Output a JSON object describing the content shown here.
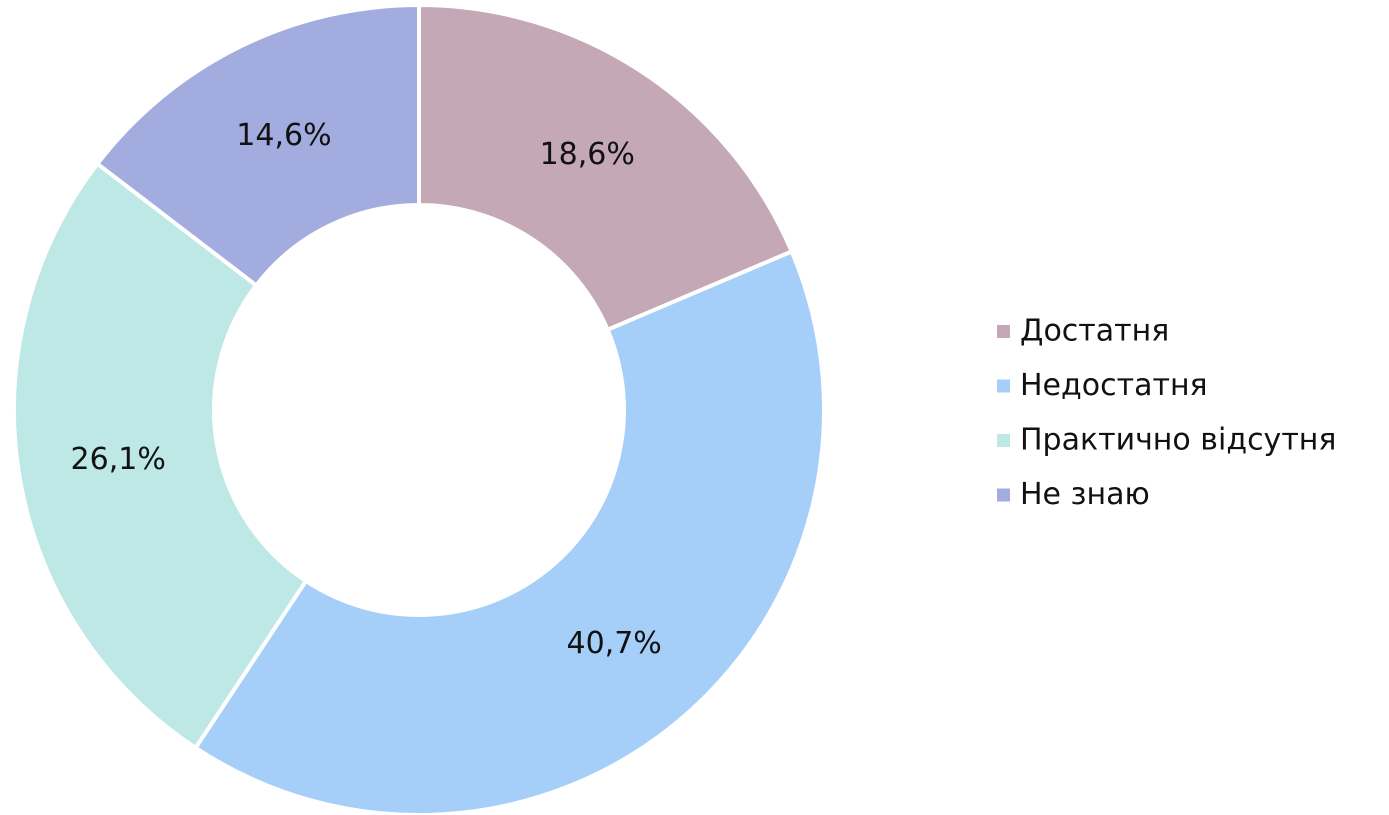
{
  "chart_data": {
    "type": "pie",
    "categories": [
      "Достатня",
      "Недостатня",
      "Практично відсутня",
      "Не знаю"
    ],
    "values": [
      18.6,
      40.7,
      26.1,
      14.6
    ],
    "value_labels": [
      "18,6%",
      "40,7%",
      "26,1%",
      "14,6%"
    ],
    "colors": [
      "#c4a8b5",
      "#a5cff8",
      "#bde8e6",
      "#a2acde"
    ],
    "legend": "right"
  }
}
